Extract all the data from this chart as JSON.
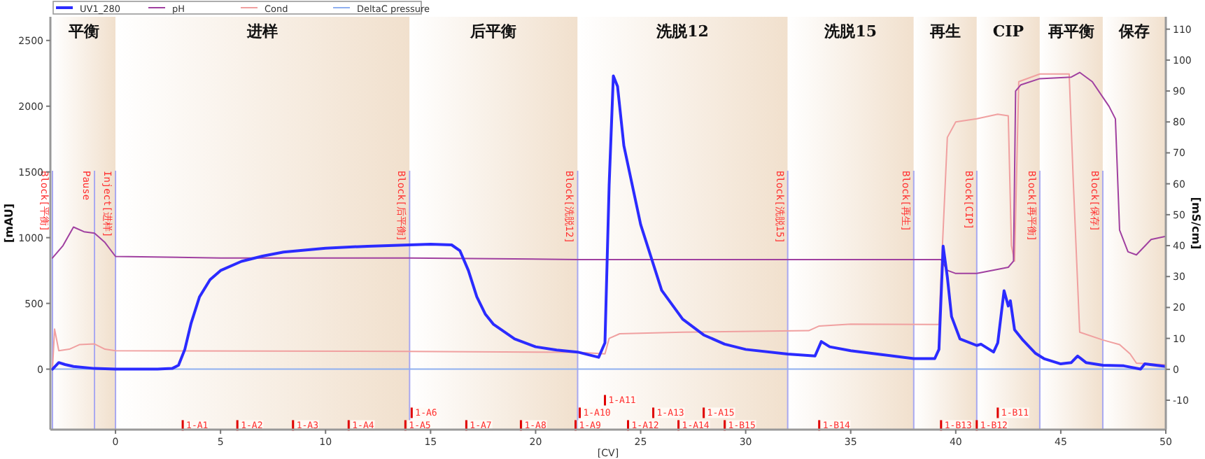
{
  "chart_data": {
    "type": "line",
    "xlabel": "[CV]",
    "ylabel": "[mAU]",
    "y2label": "[mS/cm]",
    "xlim": [
      -3.1,
      50
    ],
    "xticks": [
      0,
      5,
      10,
      15,
      20,
      25,
      30,
      35,
      40,
      45,
      50
    ],
    "ylim": [
      -460,
      2680
    ],
    "yticks": [
      0,
      500,
      1000,
      1500,
      2000,
      2500
    ],
    "y2lim": [
      -19.5,
      114
    ],
    "y2ticks": [
      -10,
      0,
      10,
      20,
      30,
      40,
      50,
      60,
      70,
      80,
      90,
      100,
      110
    ],
    "legend": "top",
    "grid": false,
    "series": [
      {
        "name": "UV1_280",
        "color": "#2b2bff",
        "x": [
          -3,
          -2.7,
          -2.4,
          -2,
          -1,
          0,
          2,
          2.7,
          3,
          3.3,
          3.6,
          4,
          4.5,
          5,
          6,
          7,
          8,
          10,
          12,
          14,
          15,
          16,
          16.4,
          16.8,
          17.2,
          17.6,
          18,
          19,
          20,
          21,
          22,
          22.5,
          23,
          23.3,
          23.5,
          23.7,
          23.9,
          24.2,
          25,
          26,
          27,
          28,
          29,
          30,
          32,
          33.3,
          33.6,
          34,
          35,
          37,
          38,
          39,
          39.2,
          39.4,
          39.6,
          39.8,
          40.2,
          41,
          41.2,
          41.8,
          42,
          42.3,
          42.5,
          42.6,
          42.8,
          43.2,
          43.8,
          44.2,
          45,
          45.5,
          45.8,
          46.2,
          47,
          48,
          48.8,
          49,
          50
        ],
        "values": [
          0,
          50,
          35,
          20,
          5,
          0,
          0,
          5,
          30,
          150,
          350,
          550,
          680,
          750,
          820,
          860,
          890,
          920,
          935,
          945,
          950,
          945,
          900,
          750,
          550,
          420,
          340,
          230,
          170,
          145,
          130,
          110,
          90,
          200,
          1400,
          2230,
          2150,
          1700,
          1100,
          600,
          380,
          260,
          190,
          150,
          115,
          100,
          210,
          170,
          140,
          100,
          80,
          80,
          150,
          936,
          700,
          400,
          230,
          180,
          190,
          130,
          200,
          596,
          480,
          520,
          300,
          220,
          120,
          80,
          40,
          50,
          100,
          50,
          30,
          25,
          0,
          40,
          20
        ]
      },
      {
        "name": "pH",
        "color": "#a040a0",
        "axis": "y2",
        "x": [
          -3,
          -2.5,
          -2,
          -1.5,
          -1,
          -0.5,
          0,
          5,
          14,
          22,
          32,
          38,
          39.3,
          39.6,
          40,
          41,
          42.5,
          42.75,
          42.85,
          43.1,
          44,
          45.5,
          45.9,
          46.5,
          47.3,
          47.6,
          47.8,
          48.2,
          48.6,
          49.3,
          50
        ],
        "values": [
          36,
          40,
          46,
          44.5,
          44,
          41,
          36.5,
          36,
          36,
          35.5,
          35.5,
          35.5,
          35.5,
          32,
          31,
          31,
          33,
          35,
          90,
          92,
          94,
          94.5,
          96,
          93,
          85,
          81,
          45,
          38,
          37,
          42,
          43
        ]
      },
      {
        "name": "Cond",
        "color": "#f0a0a0",
        "axis": "y2",
        "x": [
          -3,
          -2.9,
          -2.7,
          -2.2,
          -1.7,
          -1,
          -0.5,
          0,
          14,
          22,
          23.3,
          23.5,
          24,
          27,
          33,
          33.5,
          35,
          39.2,
          39.3,
          39.6,
          40,
          41,
          42,
          42.5,
          42.65,
          42.8,
          43,
          44,
          45.4,
          45.6,
          45.9,
          47,
          47.8,
          48.3,
          48.6,
          50
        ],
        "values": [
          0,
          13,
          6,
          6.5,
          8,
          8.2,
          6.5,
          6,
          5.8,
          5.5,
          5,
          10,
          11.5,
          12,
          12.5,
          14,
          14.6,
          14.5,
          30,
          75,
          80,
          81,
          82.5,
          82,
          40,
          35,
          93,
          95.5,
          95.5,
          60,
          12,
          9.5,
          8,
          5,
          2,
          1.5
        ]
      },
      {
        "name": "DeltaC pressure",
        "color": "#8fb0f0",
        "x": [
          -3,
          50
        ],
        "values": [
          0,
          0
        ]
      }
    ],
    "bands": [
      {
        "axis": "x",
        "from": -3,
        "to": 0,
        "label": "平衡",
        "color": "#f1e0cd"
      },
      {
        "axis": "x",
        "from": 0,
        "to": 14,
        "label": "进样",
        "color": "#f1e0cd"
      },
      {
        "axis": "x",
        "from": 14,
        "to": 22,
        "label": "后平衡",
        "color": "#f1e0cd"
      },
      {
        "axis": "x",
        "from": 22,
        "to": 32,
        "label": "洗脱12",
        "color": "#f1e0cd"
      },
      {
        "axis": "x",
        "from": 32,
        "to": 38,
        "label": "洗脱15",
        "color": "#f1e0cd"
      },
      {
        "axis": "x",
        "from": 38,
        "to": 41,
        "label": "再生",
        "color": "#f1e0cd"
      },
      {
        "axis": "x",
        "from": 41,
        "to": 44,
        "label": "CIP",
        "color": "#f1e0cd"
      },
      {
        "axis": "x",
        "from": 44,
        "to": 47,
        "label": "再平衡",
        "color": "#f1e0cd"
      },
      {
        "axis": "x",
        "from": 47,
        "to": 50,
        "label": "保存",
        "color": "#f1e0cd"
      }
    ],
    "ref_lines": [
      {
        "axis": "x",
        "value": -3,
        "label": "Block[平衡]",
        "color": "#a8a8f0"
      },
      {
        "axis": "x",
        "value": -1,
        "label": "Pause",
        "color": "#a8a8f0"
      },
      {
        "axis": "x",
        "value": 0,
        "label": "Inject[进样]",
        "color": "#a8a8f0"
      },
      {
        "axis": "x",
        "value": 14,
        "label": "Block[后平衡]",
        "color": "#a8a8f0"
      },
      {
        "axis": "x",
        "value": 22,
        "label": "Block[洗脱12]",
        "color": "#a8a8f0"
      },
      {
        "axis": "x",
        "value": 32,
        "label": "Block[洗脱15]",
        "color": "#a8a8f0"
      },
      {
        "axis": "x",
        "value": 38,
        "label": "Block[再生]",
        "color": "#a8a8f0"
      },
      {
        "axis": "x",
        "value": 41,
        "label": "Block[CIP]",
        "color": "#a8a8f0"
      },
      {
        "axis": "x",
        "value": 44,
        "label": "Block[再平衡]",
        "color": "#a8a8f0"
      },
      {
        "axis": "x",
        "value": 47,
        "label": "Block[保存]",
        "color": "#a8a8f0"
      }
    ],
    "annotations": [
      {
        "text": "1-A1",
        "x": 3.2,
        "y": -420
      },
      {
        "text": "1-A2",
        "x": 5.8,
        "y": -420
      },
      {
        "text": "1-A3",
        "x": 8.45,
        "y": -420
      },
      {
        "text": "1-A4",
        "x": 11.1,
        "y": -420
      },
      {
        "text": "1-A5",
        "x": 13.8,
        "y": -420
      },
      {
        "text": "1-A6",
        "x": 14.1,
        "y": -420
      },
      {
        "text": "1-A7",
        "x": 16.7,
        "y": -420
      },
      {
        "text": "1-A8",
        "x": 19.3,
        "y": -420
      },
      {
        "text": "1-A9",
        "x": 21.9,
        "y": -420
      },
      {
        "text": "1-A10",
        "x": 22.1,
        "y": -420
      },
      {
        "text": "1-A11",
        "x": 23.3,
        "y": -420
      },
      {
        "text": "1-A12",
        "x": 24.4,
        "y": -420
      },
      {
        "text": "1-A13",
        "x": 25.6,
        "y": -420
      },
      {
        "text": "1-A14",
        "x": 26.8,
        "y": -420
      },
      {
        "text": "1-A15",
        "x": 28.0,
        "y": -420
      },
      {
        "text": "1-B15",
        "x": 29.0,
        "y": -420
      },
      {
        "text": "1-B14",
        "x": 33.5,
        "y": -420
      },
      {
        "text": "1-B13",
        "x": 39.3,
        "y": -420
      },
      {
        "text": "1-B12",
        "x": 41.0,
        "y": -420
      },
      {
        "text": "1-B11",
        "x": 42.0,
        "y": -420
      }
    ]
  }
}
